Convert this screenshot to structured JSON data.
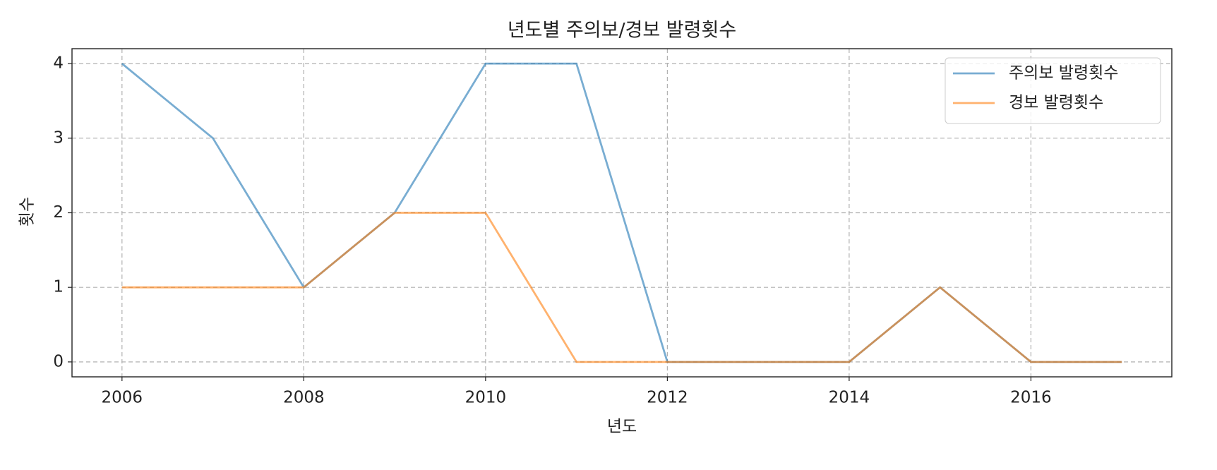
{
  "chart_data": {
    "type": "line",
    "title": "년도별 주의보/경보 발령횟수",
    "x_label": "년도",
    "y_label": "횟수",
    "x": [
      2006,
      2007,
      2008,
      2009,
      2010,
      2011,
      2012,
      2013,
      2014,
      2015,
      2016,
      2017
    ],
    "series": [
      {
        "name": "주의보 발령횟수",
        "color": "#1f77b4",
        "values": [
          4,
          3,
          1,
          2,
          4,
          4,
          0,
          0,
          0,
          1,
          0,
          0
        ]
      },
      {
        "name": "경보 발령횟수",
        "color": "#ff7f0e",
        "values": [
          1,
          1,
          1,
          2,
          2,
          0,
          0,
          0,
          0,
          1,
          0,
          0
        ]
      }
    ],
    "alpha": 0.6,
    "xlim": [
      2005.45,
      2017.55
    ],
    "xticks": [
      2006,
      2008,
      2010,
      2012,
      2014,
      2016
    ],
    "ylim": [
      -0.2,
      4.2
    ],
    "yticks": [
      0,
      1,
      2,
      3,
      4
    ],
    "grid": true,
    "legend": "upper right"
  }
}
